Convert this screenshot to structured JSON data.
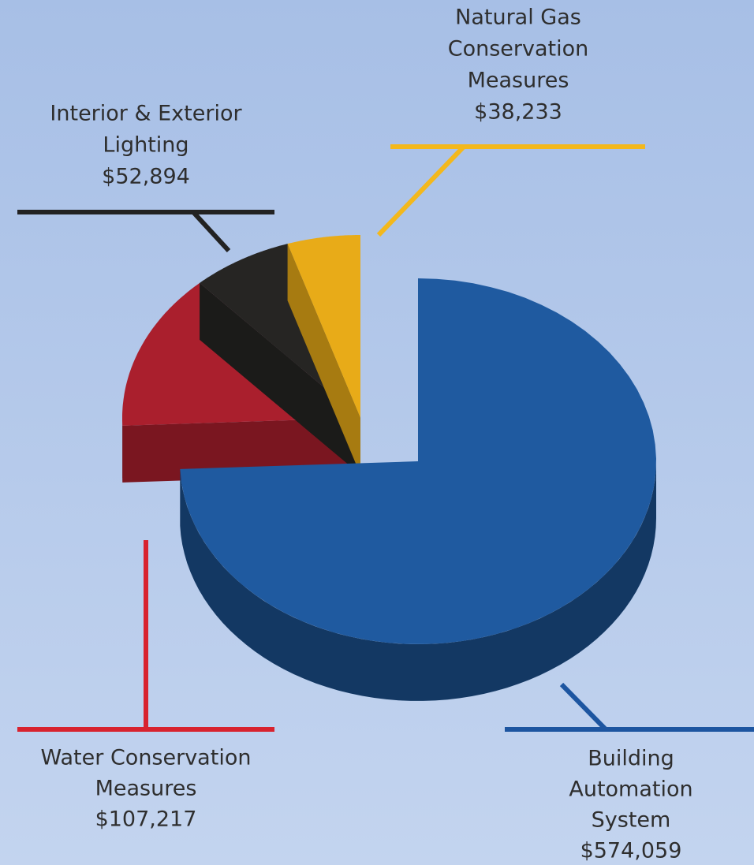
{
  "chart_data": {
    "type": "pie",
    "categories": [
      [
        "Building",
        "Automation",
        "System"
      ],
      [
        "Water Conservation",
        "Measures"
      ],
      [
        "Interior & Exterior",
        "Lighting"
      ],
      [
        "Natural Gas",
        "Conservation",
        "Measures"
      ]
    ],
    "values": [
      574059,
      107217,
      52894,
      38233
    ],
    "value_labels": [
      "$574,059",
      "$107,217",
      "$52,894",
      "$38,233"
    ],
    "colors": [
      "#1f5aa0",
      "#aa1f2d",
      "#262523",
      "#e8ab18"
    ]
  }
}
